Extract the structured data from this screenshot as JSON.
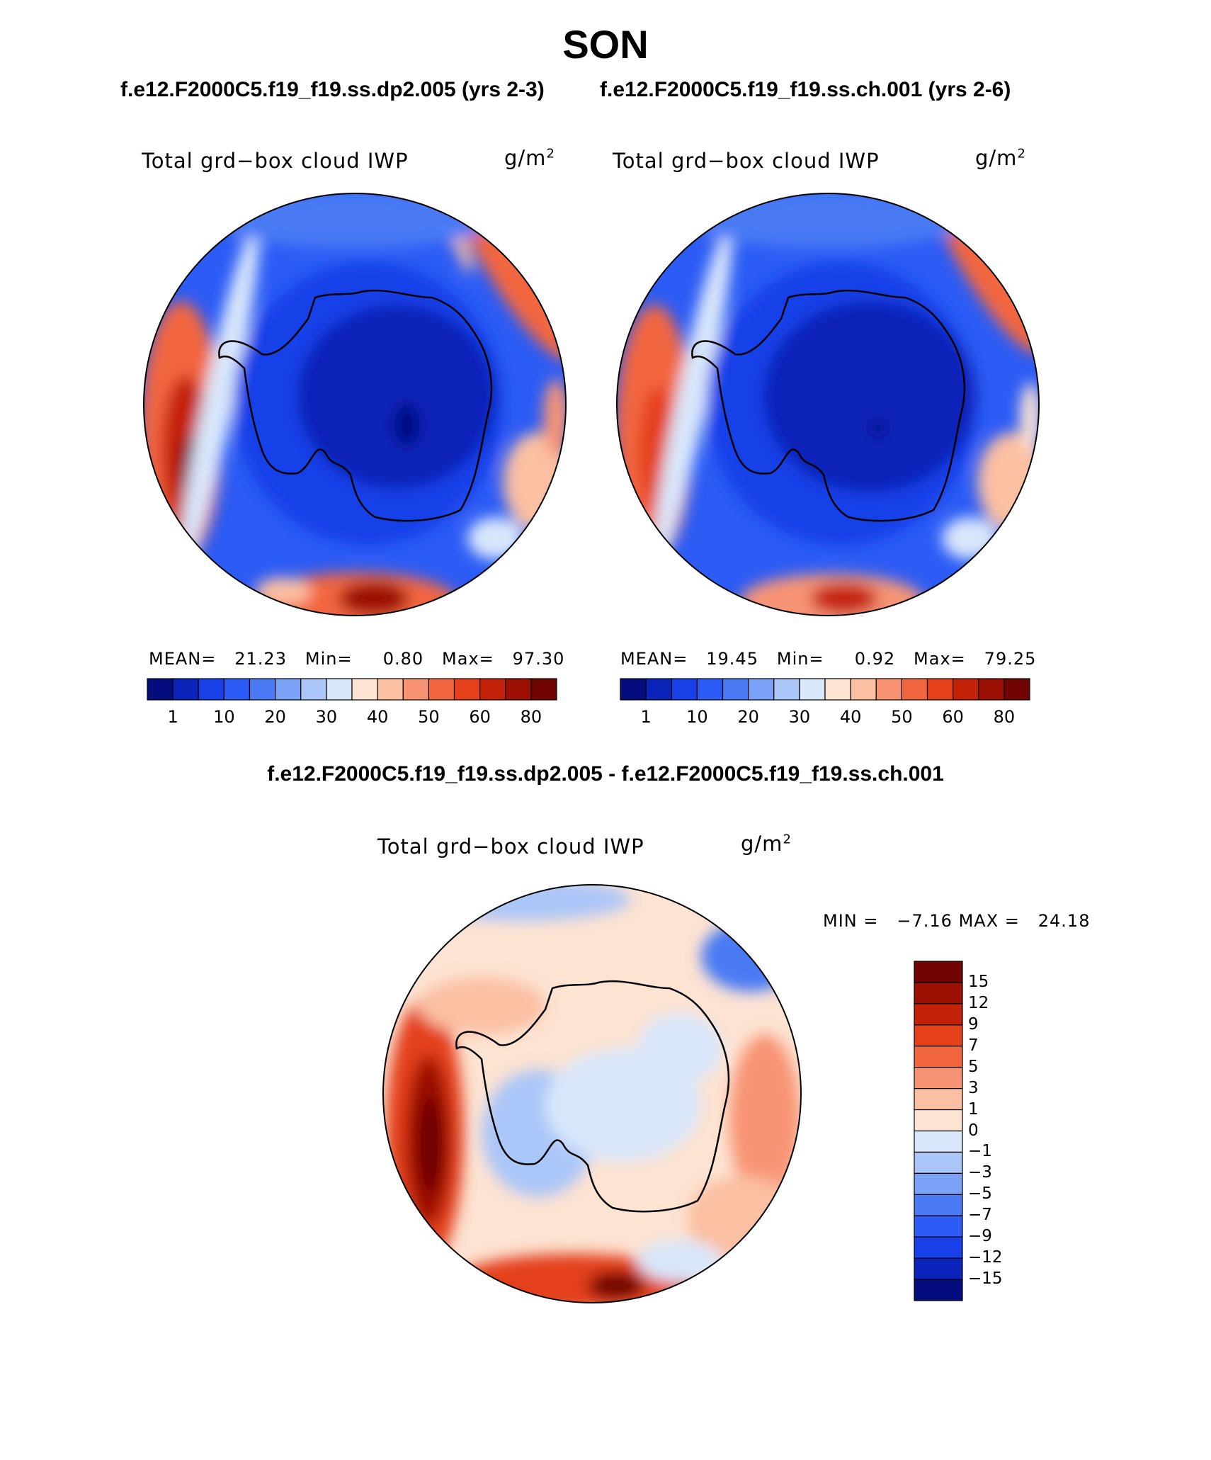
{
  "title": "SON",
  "panels": [
    {
      "case_title": "f.e12.F2000C5.f19_f19.ss.dp2.005 (yrs 2-3)",
      "variable": "Total grd−box cloud IWP",
      "unit_base": "g/m",
      "unit_exp": "2",
      "stats": {
        "mean_label": "MEAN=",
        "mean": "21.23",
        "min_label": "Min=",
        "min": "0.80",
        "max_label": "Max=",
        "max": "97.30"
      }
    },
    {
      "case_title": "f.e12.F2000C5.f19_f19.ss.ch.001 (yrs 2-6)",
      "variable": "Total grd−box cloud IWP",
      "unit_base": "g/m",
      "unit_exp": "2",
      "stats": {
        "mean_label": "MEAN=",
        "mean": "19.45",
        "min_label": "Min=",
        "min": "0.92",
        "max_label": "Max=",
        "max": "79.25"
      }
    }
  ],
  "colorbar_abs": {
    "colors": [
      "#050c7e",
      "#0a23b8",
      "#1740e8",
      "#2c5cf5",
      "#4a7af4",
      "#7aa2f6",
      "#abc6f8",
      "#d9e7fb",
      "#fde3d2",
      "#fbbfa2",
      "#f89474",
      "#f2663f",
      "#e4401a",
      "#c42208",
      "#9c1003",
      "#700402"
    ],
    "ticks": [
      "1",
      "10",
      "20",
      "30",
      "40",
      "50",
      "60",
      "80"
    ],
    "tick_positions": [
      1,
      3,
      5,
      7,
      9,
      11,
      13,
      15
    ]
  },
  "diff": {
    "title": "f.e12.F2000C5.f19_f19.ss.dp2.005 - f.e12.F2000C5.f19_f19.ss.ch.001",
    "variable": "Total grd−box cloud IWP",
    "unit_base": "g/m",
    "unit_exp": "2",
    "minmax": {
      "min_label": "MIN =",
      "min": "−7.16",
      "max_label": "MAX =",
      "max": "24.18"
    }
  },
  "colorbar_diff": {
    "colors": [
      "#700402",
      "#9c1003",
      "#c42208",
      "#e4401a",
      "#f2663f",
      "#f89474",
      "#fbbfa2",
      "#fde3d2",
      "#d9e7fb",
      "#abc6f8",
      "#7aa2f6",
      "#4a7af4",
      "#2c5cf5",
      "#1740e8",
      "#0a23b8",
      "#050c7e"
    ],
    "ticks": [
      "15",
      "12",
      "9",
      "7",
      "5",
      "3",
      "1",
      "0",
      "−1",
      "−3",
      "−5",
      "−7",
      "−9",
      "−12",
      "−15"
    ]
  }
}
